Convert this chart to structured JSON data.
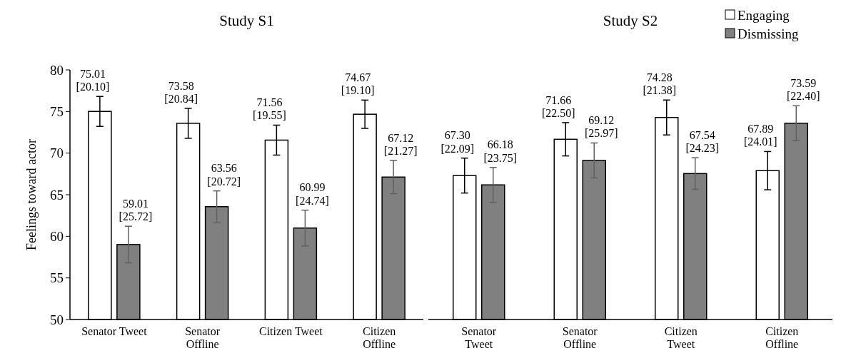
{
  "chart_data": [
    {
      "type": "bar",
      "title": "Study S1",
      "ylabel": "Feelings toward actor",
      "categories": [
        "Senator Tweet",
        "Senator\nOffline",
        "Citizen Tweet",
        "Citizen\nOffline"
      ],
      "ylim": [
        50,
        80
      ],
      "yticks": [
        50,
        55,
        60,
        65,
        70,
        75,
        80
      ],
      "legend": false,
      "series": [
        {
          "color": "#ffffff",
          "values": [
            75.01,
            73.58,
            71.56,
            74.67
          ],
          "errors": [
            1.8,
            1.8,
            1.8,
            1.7
          ],
          "value_labels": [
            "75.01\n[20.10]",
            "73.58\n[20.84]",
            "71.56\n[19.55]",
            "74.67\n[19.10]"
          ]
        },
        {
          "color": "#808080",
          "values": [
            59.01,
            63.56,
            60.99,
            67.12
          ],
          "errors": [
            2.2,
            1.9,
            2.15,
            2.0
          ],
          "value_labels": [
            "59.01\n[25.72]",
            "63.56\n[20.72]",
            "60.99\n[24.74]",
            "67.12\n[21.27]"
          ]
        }
      ]
    },
    {
      "type": "bar",
      "title": "Study S2",
      "categories": [
        "Senator\nTweet",
        "Senator\nOffline",
        "Citizen\nTweet",
        "Citizen\nOffline"
      ],
      "ylim": [
        50,
        80
      ],
      "tick_labels": "x",
      "legend": "top right",
      "series": [
        {
          "name": "Engaging",
          "color": "#ffffff",
          "values": [
            67.3,
            71.66,
            74.28,
            67.89
          ],
          "errors": [
            2.1,
            2.0,
            2.1,
            2.3
          ],
          "value_labels": [
            "67.30\n[22.09]",
            "71.66\n[22.50]",
            "74.28\n[21.38]",
            "67.89\n[24.01]"
          ]
        },
        {
          "name": "Dismissing",
          "color": "#808080",
          "values": [
            66.18,
            69.12,
            67.54,
            73.59
          ],
          "errors": [
            2.1,
            2.1,
            1.9,
            2.1
          ],
          "value_labels": [
            "66.18\n[23.75]",
            "69.12\n[25.97]",
            "67.54\n[24.23]",
            "73.59\n[22.40]"
          ]
        }
      ]
    }
  ]
}
